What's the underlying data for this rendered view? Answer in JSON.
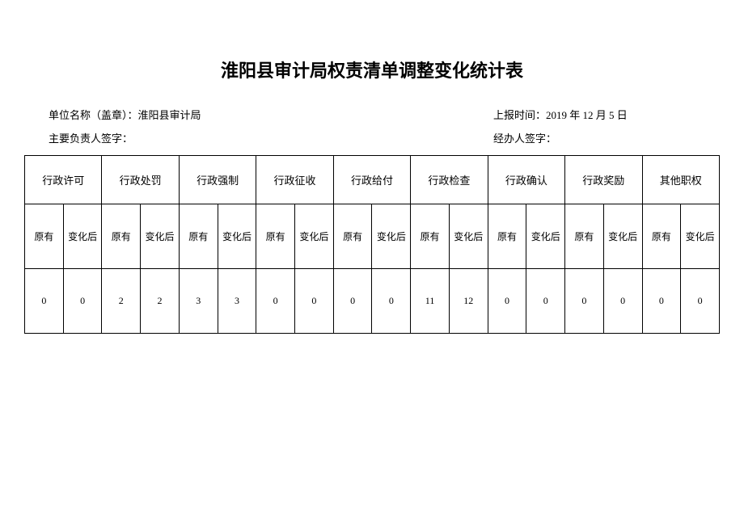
{
  "title": "淮阳县审计局权责清单调整变化统计表",
  "info": {
    "unit_label": "单位名称（盖章）：",
    "unit_name": "淮阳县审计局",
    "report_time_label": "上报时间：",
    "report_time_value": "2019 年 12 月 5 日",
    "main_signer_label": "主要负责人签字：",
    "handler_signer_label": "经办人签字："
  },
  "table": {
    "categories": [
      "行政许可",
      "行政处罚",
      "行政强制",
      "行政征收",
      "行政给付",
      "行政检查",
      "行政确认",
      "行政奖励",
      "其他职权"
    ],
    "subheaders": {
      "original": "原有",
      "after": "变化后"
    },
    "values": [
      {
        "original": "0",
        "after": "0"
      },
      {
        "original": "2",
        "after": "2"
      },
      {
        "original": "3",
        "after": "3"
      },
      {
        "original": "0",
        "after": "0"
      },
      {
        "original": "0",
        "after": "0"
      },
      {
        "original": "11",
        "after": "12"
      },
      {
        "original": "0",
        "after": "0"
      },
      {
        "original": "0",
        "after": "0"
      },
      {
        "original": "0",
        "after": "0"
      }
    ]
  },
  "styles": {
    "background_color": "#ffffff",
    "border_color": "#000000",
    "title_fontsize": 22,
    "info_fontsize": 13,
    "cell_fontsize": 12
  }
}
